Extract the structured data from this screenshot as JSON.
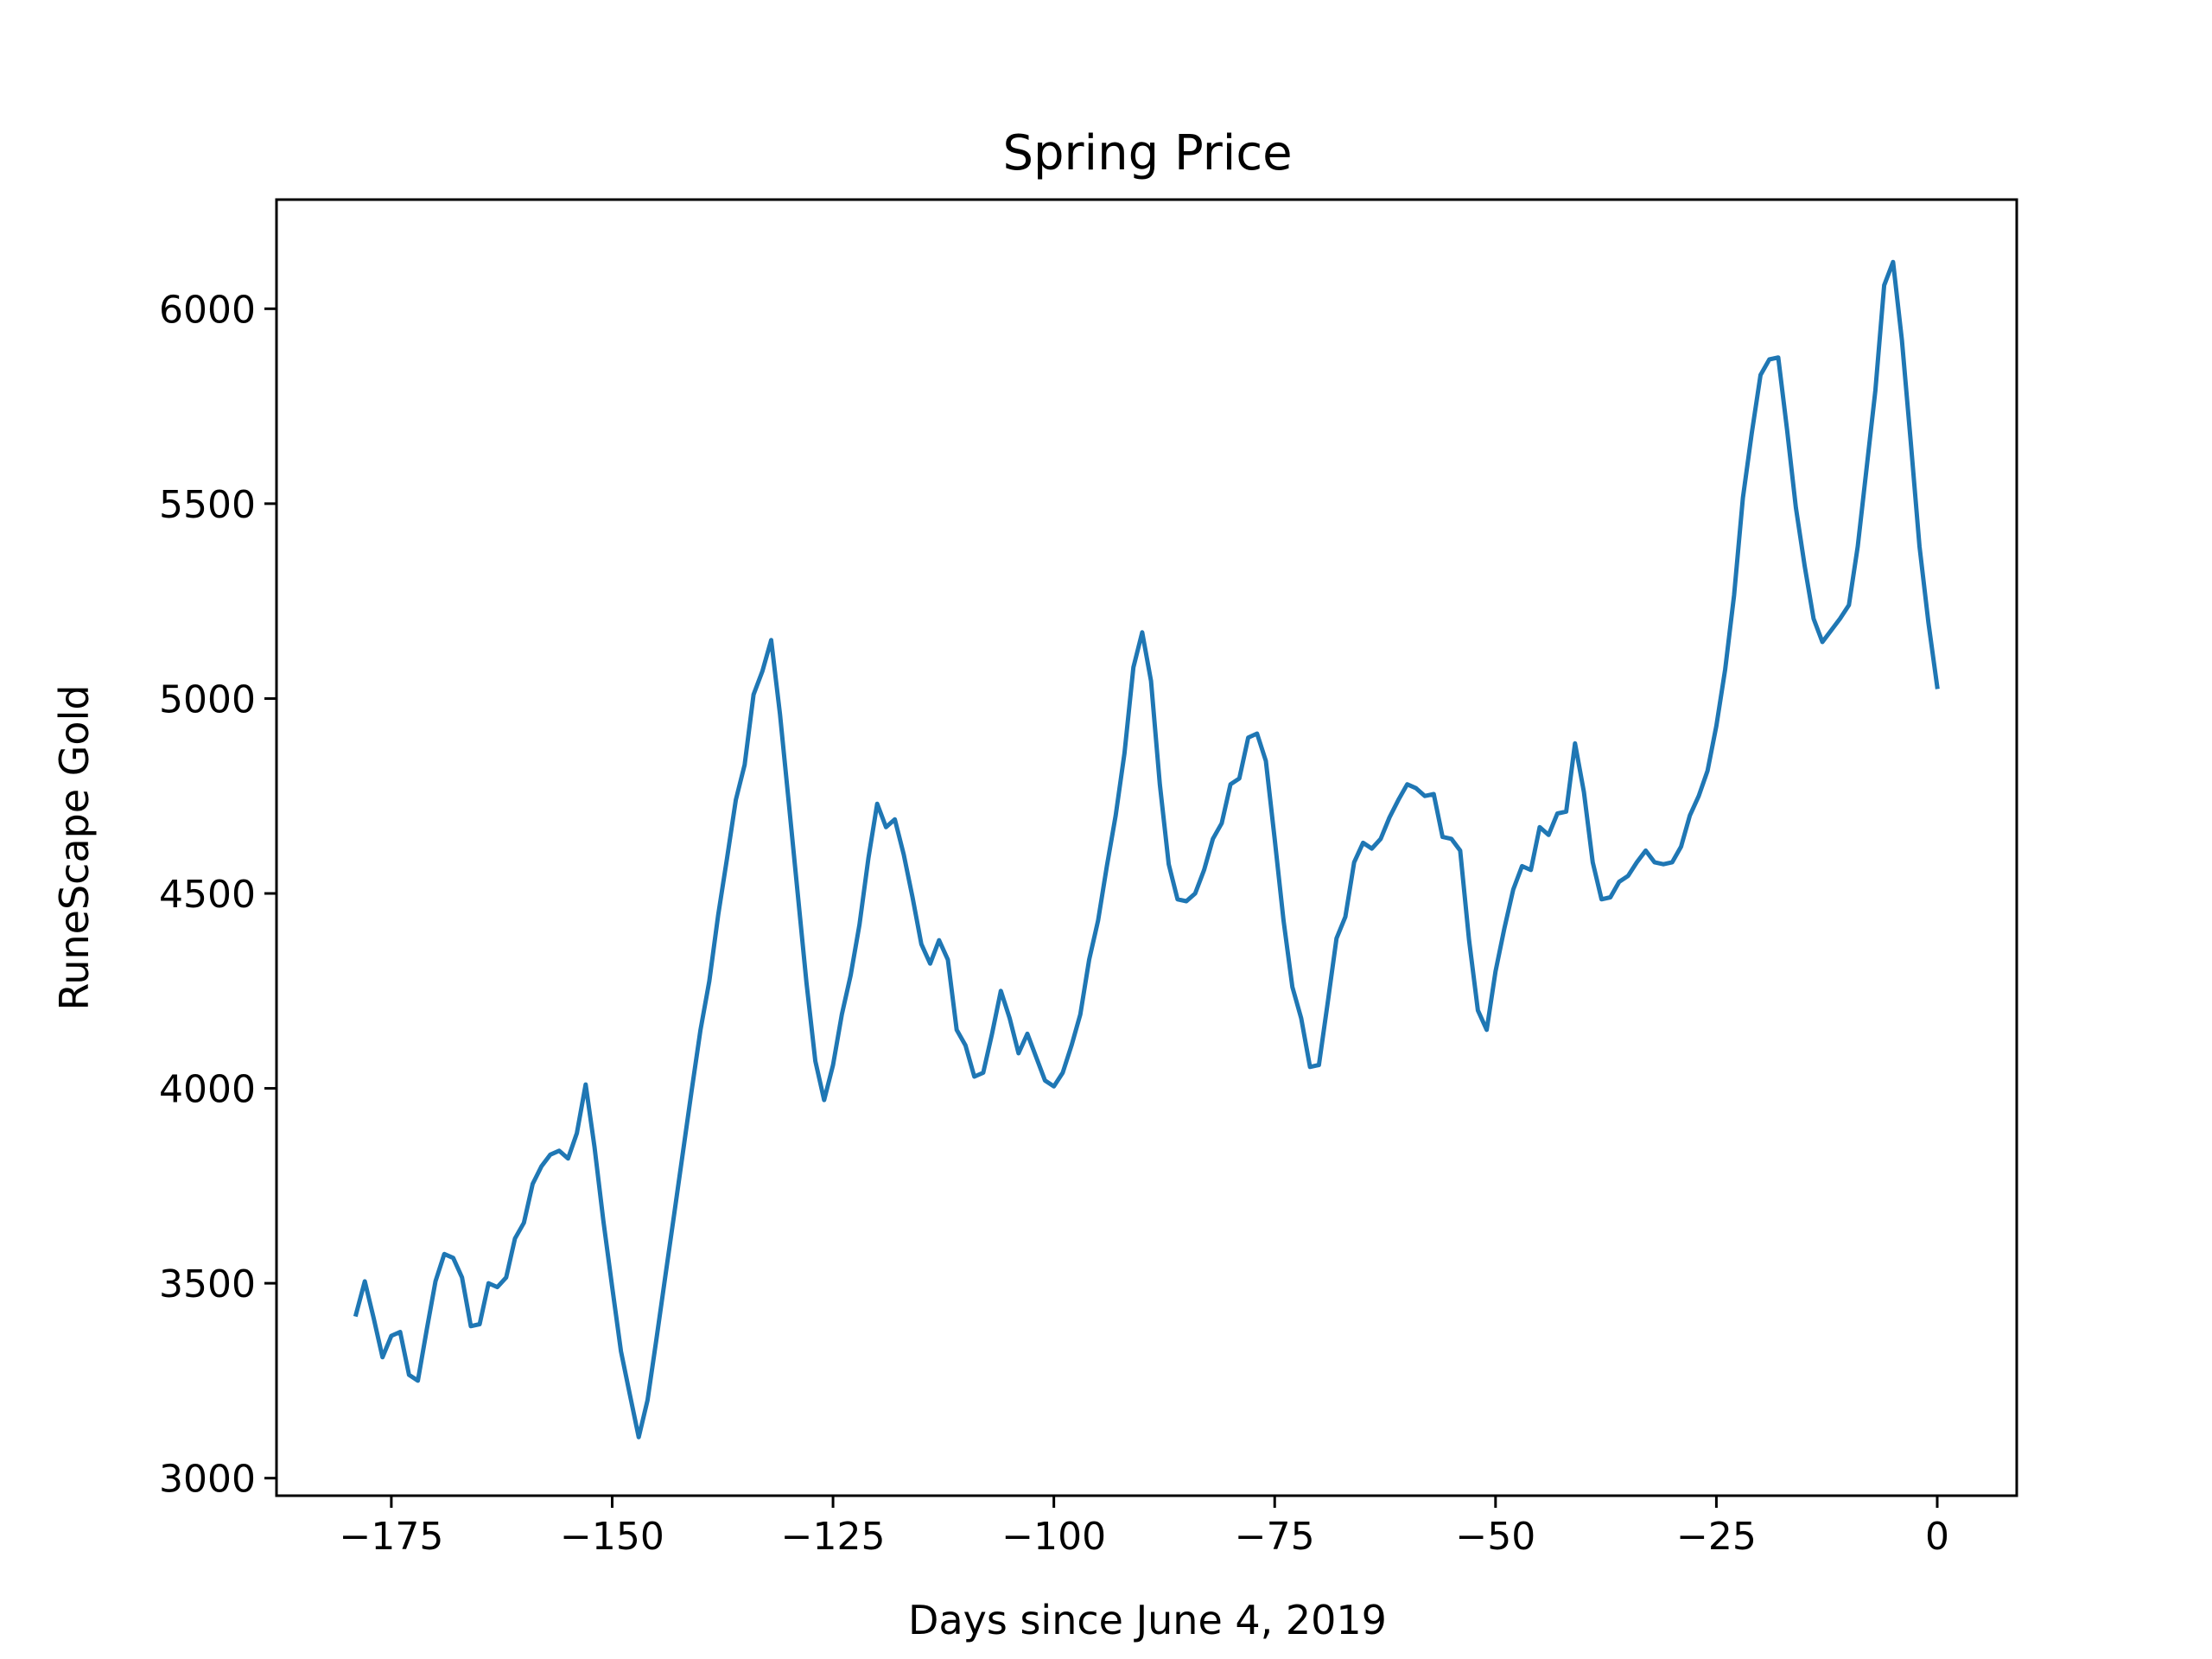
{
  "chart_data": {
    "type": "line",
    "title": "Spring Price",
    "xlabel": "Days since June 4, 2019",
    "ylabel": "RuneScape Gold",
    "xlim": [
      -188,
      9
    ],
    "ylim": [
      2955,
      6280
    ],
    "grid": false,
    "x_ticks": [
      -175,
      -150,
      -125,
      -100,
      -75,
      -50,
      -25,
      0
    ],
    "x_tick_labels": [
      "−175",
      "−150",
      "−125",
      "−100",
      "−75",
      "−50",
      "−25",
      "0"
    ],
    "y_ticks": [
      3000,
      3500,
      4000,
      4500,
      5000,
      5500,
      6000
    ],
    "y_tick_labels": [
      "3000",
      "3500",
      "4000",
      "4500",
      "5000",
      "5500",
      "6000"
    ],
    "series": [
      {
        "color": "#1f77b4",
        "x": [
          -179,
          -178,
          -177,
          -176,
          -175,
          -174,
          -173,
          -172,
          -171,
          -170,
          -169,
          -168,
          -167,
          -166,
          -165,
          -164,
          -163,
          -162,
          -161,
          -160,
          -159,
          -158,
          -157,
          -156,
          -155,
          -154,
          -153,
          -152,
          -151,
          -150,
          -149,
          -148,
          -147,
          -146,
          -145,
          -144,
          -143,
          -142,
          -141,
          -140,
          -139,
          -138,
          -137,
          -136,
          -135,
          -134,
          -133,
          -132,
          -131,
          -130,
          -129,
          -128,
          -127,
          -126,
          -125,
          -124,
          -123,
          -122,
          -121,
          -120,
          -119,
          -118,
          -117,
          -116,
          -115,
          -114,
          -113,
          -112,
          -111,
          -110,
          -109,
          -108,
          -107,
          -106,
          -105,
          -104,
          -103,
          -102,
          -101,
          -100,
          -99,
          -98,
          -97,
          -96,
          -95,
          -94,
          -93,
          -92,
          -91,
          -90,
          -89,
          -88,
          -87,
          -86,
          -85,
          -84,
          -83,
          -82,
          -81,
          -80,
          -79,
          -78,
          -77,
          -76,
          -75,
          -74,
          -73,
          -72,
          -71,
          -70,
          -69,
          -68,
          -67,
          -66,
          -65,
          -64,
          -63,
          -62,
          -61,
          -60,
          -59,
          -58,
          -57,
          -56,
          -55,
          -54,
          -53,
          -52,
          -51,
          -50,
          -49,
          -48,
          -47,
          -46,
          -45,
          -44,
          -43,
          -42,
          -41,
          -40,
          -39,
          -38,
          -37,
          -36,
          -35,
          -34,
          -33,
          -32,
          -31,
          -30,
          -29,
          -28,
          -27,
          -26,
          -25,
          -24,
          -23,
          -22,
          -21,
          -20,
          -19,
          -18,
          -17,
          -16,
          -15,
          -14,
          -13,
          -12,
          -11,
          -10,
          -9,
          -8,
          -7,
          -6,
          -5,
          -4,
          -3,
          -2,
          -1,
          0
        ],
        "y": [
          3420,
          3505,
          3410,
          3310,
          3365,
          3375,
          3265,
          3250,
          3380,
          3505,
          3575,
          3565,
          3515,
          3390,
          3395,
          3500,
          3490,
          3515,
          3615,
          3655,
          3755,
          3800,
          3830,
          3840,
          3820,
          3885,
          4010,
          3850,
          3660,
          3490,
          3325,
          3215,
          3105,
          3200,
          3355,
          3515,
          3675,
          3835,
          3995,
          4150,
          4275,
          4445,
          4590,
          4740,
          4830,
          5010,
          5070,
          5150,
          4960,
          4730,
          4500,
          4270,
          4070,
          3970,
          4060,
          4190,
          4290,
          4420,
          4590,
          4730,
          4670,
          4690,
          4600,
          4490,
          4370,
          4320,
          4380,
          4330,
          4150,
          4110,
          4030,
          4040,
          4140,
          4250,
          4180,
          4090,
          4140,
          4080,
          4020,
          4005,
          4040,
          4110,
          4190,
          4330,
          4430,
          4570,
          4700,
          4860,
          5080,
          5170,
          5045,
          4780,
          4575,
          4485,
          4480,
          4500,
          4560,
          4640,
          4680,
          4780,
          4795,
          4900,
          4910,
          4840,
          4640,
          4430,
          4260,
          4180,
          4055,
          4060,
          4220,
          4385,
          4440,
          4580,
          4630,
          4615,
          4640,
          4695,
          4740,
          4780,
          4770,
          4750,
          4755,
          4645,
          4640,
          4610,
          4380,
          4200,
          4150,
          4300,
          4410,
          4510,
          4570,
          4560,
          4670,
          4650,
          4705,
          4710,
          4885,
          4760,
          4580,
          4485,
          4490,
          4530,
          4545,
          4580,
          4610,
          4580,
          4575,
          4580,
          4620,
          4700,
          4750,
          4815,
          4930,
          5075,
          5265,
          5515,
          5680,
          5830,
          5870,
          5875,
          5690,
          5490,
          5340,
          5205,
          5145,
          5175,
          5205,
          5240,
          5390,
          5590,
          5790,
          6060,
          6120,
          5920,
          5660,
          5390,
          5195,
          5030
        ]
      }
    ]
  }
}
